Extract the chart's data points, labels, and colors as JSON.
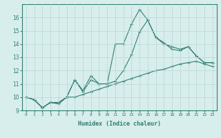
{
  "xlabel": "Humidex (Indice chaleur)",
  "x": [
    0,
    1,
    2,
    3,
    4,
    5,
    6,
    7,
    8,
    9,
    10,
    11,
    12,
    13,
    14,
    15,
    16,
    17,
    18,
    19,
    20,
    21,
    22,
    23
  ],
  "line1": [
    10.0,
    9.8,
    9.2,
    9.6,
    9.6,
    10.0,
    11.3,
    10.5,
    11.6,
    11.0,
    11.0,
    14.0,
    14.0,
    15.5,
    16.6,
    15.8,
    14.5,
    14.0,
    13.8,
    13.6,
    13.8,
    13.1,
    12.6,
    12.6
  ],
  "line2": [
    10.0,
    9.8,
    9.2,
    9.6,
    9.5,
    10.0,
    11.3,
    10.4,
    11.3,
    11.0,
    11.0,
    11.2,
    12.0,
    13.2,
    14.9,
    15.8,
    14.5,
    14.1,
    13.6,
    13.5,
    13.8,
    13.1,
    12.6,
    12.6
  ],
  "line3": [
    10.0,
    9.8,
    9.2,
    9.6,
    9.5,
    10.0,
    10.0,
    10.2,
    10.4,
    10.6,
    10.8,
    11.0,
    11.2,
    11.4,
    11.6,
    11.8,
    12.0,
    12.1,
    12.3,
    12.5,
    12.6,
    12.7,
    12.5,
    12.3
  ],
  "line_color": "#2e7d6e",
  "bg_color": "#d8eeed",
  "grid_color": "#b8d4d4",
  "ylim": [
    9,
    17
  ],
  "yticks": [
    9,
    10,
    11,
    12,
    13,
    14,
    15,
    16
  ],
  "xticks": [
    0,
    1,
    2,
    3,
    4,
    5,
    6,
    7,
    8,
    9,
    10,
    11,
    12,
    13,
    14,
    15,
    16,
    17,
    18,
    19,
    20,
    21,
    22,
    23
  ]
}
